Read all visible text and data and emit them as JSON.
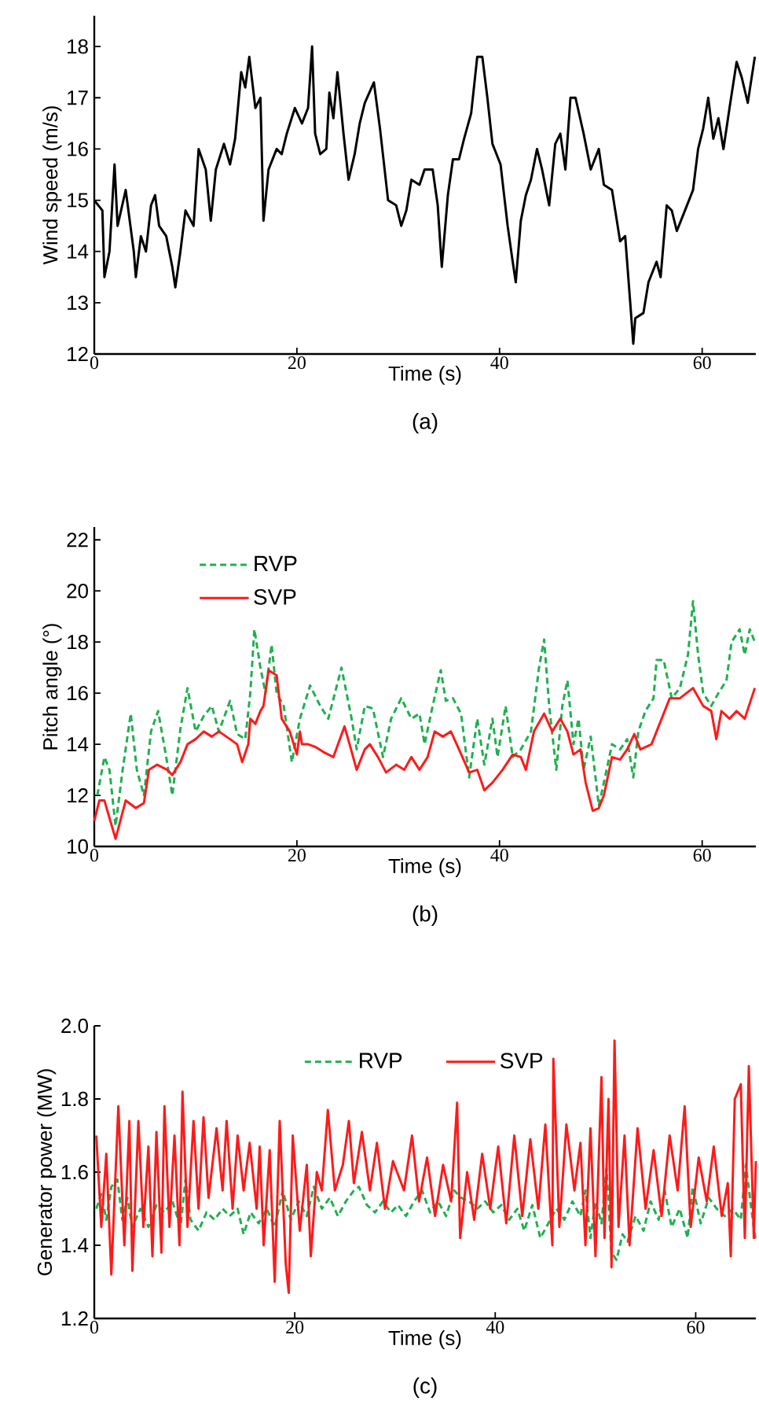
{
  "chart_data": [
    {
      "type": "line",
      "xlabel": "Time (s)",
      "ylabel": "Wind speed (m/s)",
      "annotations": [
        "(a)"
      ],
      "xlim": [
        0,
        65.3
      ],
      "ylim": [
        12,
        18.6
      ],
      "xticks": [
        0,
        20,
        40,
        60
      ],
      "yticks": [
        12,
        13,
        14,
        15,
        16,
        17,
        18
      ],
      "series": [
        {
          "color": "#000000",
          "line_style": "solid",
          "x": [
            0,
            0.8,
            1.0,
            1.5,
            2.0,
            2.3,
            3.1,
            3.9,
            4.1,
            4.6,
            5.1,
            5.6,
            6.0,
            6.4,
            7.1,
            7.7,
            8.0,
            8.5,
            9.0,
            9.8,
            10.3,
            11.0,
            11.5,
            12.0,
            12.8,
            13.4,
            13.9,
            14.5,
            14.9,
            15.3,
            15.9,
            16.4,
            16.7,
            17.2,
            18.0,
            18.5,
            19.0,
            19.8,
            20.5,
            21.1,
            21.5,
            21.8,
            22.3,
            22.9,
            23.2,
            23.6,
            24.0,
            24.6,
            25.1,
            25.7,
            26.2,
            26.7,
            27.6,
            28.2,
            29.0,
            29.8,
            30.3,
            30.8,
            31.3,
            32.1,
            32.6,
            33.4,
            33.9,
            34.3,
            34.9,
            35.4,
            36.0,
            36.5,
            37.2,
            37.8,
            38.3,
            38.8,
            39.3,
            40.1,
            40.8,
            41.3,
            41.6,
            42.1,
            42.6,
            43.1,
            43.7,
            44.2,
            44.9,
            45.5,
            46.0,
            46.5,
            47.0,
            47.5,
            48.3,
            49.0,
            49.8,
            50.3,
            51.1,
            51.9,
            52.4,
            52.9,
            53.2,
            53.4,
            54.2,
            54.7,
            55.5,
            55.9,
            56.2,
            56.5,
            57.0,
            57.5,
            58.3,
            59.1,
            59.6,
            60.1,
            60.6,
            61.1,
            61.6,
            62.1,
            62.7,
            63.4,
            63.9,
            64.5,
            65.2
          ],
          "values": [
            15.0,
            14.8,
            13.5,
            14.0,
            15.7,
            14.5,
            15.2,
            14.0,
            13.5,
            14.3,
            14.0,
            14.9,
            15.1,
            14.5,
            14.3,
            13.7,
            13.3,
            14.0,
            14.8,
            14.5,
            16.0,
            15.6,
            14.6,
            15.6,
            16.1,
            15.7,
            16.2,
            17.5,
            17.2,
            17.8,
            16.8,
            17.0,
            14.6,
            15.6,
            16.0,
            15.9,
            16.3,
            16.8,
            16.5,
            16.8,
            18.0,
            16.3,
            15.9,
            16.0,
            17.1,
            16.6,
            17.5,
            16.3,
            15.4,
            15.9,
            16.5,
            16.9,
            17.3,
            16.4,
            15.0,
            14.9,
            14.5,
            14.8,
            15.4,
            15.3,
            15.6,
            15.6,
            14.9,
            13.7,
            15.1,
            15.8,
            15.8,
            16.2,
            16.7,
            17.8,
            17.8,
            17.0,
            16.1,
            15.7,
            14.5,
            13.8,
            13.4,
            14.6,
            15.1,
            15.4,
            16.0,
            15.6,
            14.9,
            16.1,
            16.3,
            15.6,
            17.0,
            17.0,
            16.3,
            15.6,
            16.0,
            15.3,
            15.2,
            14.2,
            14.3,
            13.0,
            12.2,
            12.7,
            12.8,
            13.4,
            13.8,
            13.5,
            14.2,
            14.9,
            14.8,
            14.4,
            14.8,
            15.2,
            16.0,
            16.4,
            17.0,
            16.2,
            16.6,
            16.0,
            16.8,
            17.7,
            17.4,
            16.9,
            17.8
          ]
        }
      ]
    },
    {
      "type": "line",
      "xlabel": "Time (s)",
      "ylabel": "Pitch angle (°)",
      "annotations": [
        "(b)"
      ],
      "xlim": [
        0,
        65.3
      ],
      "ylim": [
        10,
        22.5
      ],
      "xticks": [
        0,
        20,
        40,
        60
      ],
      "yticks": [
        10,
        12,
        14,
        16,
        18,
        20,
        22
      ],
      "legend": "top left",
      "series": [
        {
          "name": "RVP",
          "color": "#1fb04f",
          "line_style": "dashed",
          "x": [
            0.3,
            1.0,
            1.5,
            2.1,
            2.8,
            3.6,
            4.2,
            4.9,
            5.6,
            6.3,
            7.1,
            7.7,
            8.5,
            9.2,
            10.0,
            10.8,
            11.6,
            12.3,
            13.4,
            14.1,
            14.9,
            15.4,
            15.8,
            16.4,
            16.9,
            17.5,
            18.0,
            18.7,
            19.5,
            20.3,
            21.3,
            22.3,
            23.1,
            24.4,
            25.4,
            25.9,
            26.7,
            27.5,
            28.5,
            29.3,
            30.3,
            31.3,
            32.1,
            32.6,
            33.4,
            34.2,
            34.7,
            35.4,
            36.2,
            37.0,
            37.8,
            38.5,
            39.3,
            39.8,
            40.6,
            41.3,
            42.1,
            43.1,
            43.9,
            44.4,
            44.9,
            45.6,
            46.2,
            46.7,
            47.3,
            47.8,
            48.3,
            49.0,
            49.8,
            50.3,
            51.1,
            51.9,
            52.6,
            53.2,
            53.7,
            54.4,
            55.2,
            55.5,
            56.2,
            57.0,
            57.8,
            58.6,
            59.1,
            59.6,
            60.1,
            60.9,
            61.6,
            62.4,
            62.9,
            63.7,
            64.2,
            64.7,
            65.2
          ],
          "values": [
            12.0,
            13.5,
            13.0,
            10.8,
            13.0,
            15.2,
            13.0,
            12.0,
            14.5,
            15.3,
            13.5,
            12.0,
            14.6,
            16.2,
            14.5,
            15.1,
            15.5,
            14.5,
            15.7,
            14.4,
            14.2,
            16.0,
            18.5,
            17.0,
            16.0,
            17.9,
            16.0,
            15.5,
            13.3,
            15.0,
            16.3,
            15.5,
            15.0,
            17.0,
            15.0,
            13.8,
            15.5,
            15.4,
            13.5,
            15.0,
            15.8,
            15.0,
            15.2,
            14.0,
            15.5,
            16.9,
            15.7,
            15.8,
            15.2,
            12.7,
            15.0,
            13.2,
            15.0,
            13.5,
            15.5,
            13.5,
            13.8,
            14.5,
            17.0,
            18.1,
            15.5,
            13.0,
            15.5,
            16.5,
            14.0,
            15.0,
            13.0,
            14.3,
            11.6,
            12.5,
            14.0,
            13.8,
            14.2,
            12.7,
            14.5,
            15.3,
            15.8,
            17.3,
            17.3,
            15.8,
            16.2,
            17.5,
            19.6,
            17.5,
            16.0,
            15.5,
            16.0,
            16.5,
            18.0,
            18.5,
            17.5,
            18.5,
            18.0
          ]
        },
        {
          "name": "SVP",
          "color": "#ff1a1a",
          "line_style": "solid",
          "x": [
            0,
            0.5,
            1.0,
            2.1,
            3.1,
            4.1,
            4.9,
            5.4,
            6.2,
            7.2,
            7.7,
            8.5,
            9.2,
            10.0,
            10.8,
            11.6,
            12.3,
            13.4,
            14.1,
            14.6,
            15.2,
            15.4,
            15.9,
            16.4,
            16.7,
            17.2,
            18.0,
            18.5,
            19.3,
            20.0,
            20.3,
            20.5,
            21.1,
            21.8,
            22.6,
            23.6,
            24.7,
            25.2,
            25.9,
            26.7,
            27.2,
            28.0,
            28.8,
            29.8,
            30.6,
            31.3,
            32.1,
            32.9,
            33.6,
            34.4,
            35.2,
            36.0,
            37.0,
            37.8,
            38.5,
            39.3,
            40.3,
            41.3,
            42.1,
            42.6,
            43.4,
            44.4,
            45.2,
            46.0,
            46.7,
            47.3,
            48.0,
            48.5,
            49.2,
            49.8,
            50.3,
            51.1,
            51.9,
            52.6,
            53.3,
            53.9,
            55.0,
            56.0,
            56.8,
            57.8,
            59.1,
            60.1,
            60.9,
            61.4,
            61.9,
            62.7,
            63.4,
            64.2,
            65.2
          ],
          "values": [
            11.0,
            11.8,
            11.8,
            10.3,
            11.8,
            11.5,
            11.7,
            13.0,
            13.2,
            13.0,
            12.8,
            13.3,
            14.0,
            14.2,
            14.5,
            14.3,
            14.5,
            14.2,
            14.0,
            13.3,
            14.0,
            15.0,
            14.8,
            15.3,
            15.5,
            16.9,
            16.7,
            15.0,
            14.5,
            13.6,
            14.5,
            14.0,
            14.0,
            13.9,
            13.7,
            13.5,
            14.7,
            14.0,
            13.0,
            13.8,
            14.0,
            13.5,
            12.9,
            13.2,
            13.0,
            13.5,
            13.0,
            13.5,
            14.5,
            14.3,
            14.5,
            13.8,
            12.9,
            13.0,
            12.2,
            12.5,
            13.0,
            13.6,
            13.5,
            13.0,
            14.5,
            15.2,
            14.5,
            15.0,
            14.5,
            13.6,
            13.8,
            12.5,
            11.4,
            11.5,
            12.0,
            13.5,
            13.4,
            13.8,
            14.4,
            13.8,
            14.0,
            15.0,
            15.8,
            15.8,
            16.2,
            15.5,
            15.3,
            14.2,
            15.3,
            15.0,
            15.3,
            15.0,
            16.2
          ]
        }
      ]
    },
    {
      "type": "line",
      "xlabel": "Time (s)",
      "ylabel": "Generator power (MW)",
      "annotations": [
        "(c)"
      ],
      "xlim": [
        0,
        66
      ],
      "ylim": [
        1.2,
        2.0
      ],
      "xticks": [
        0,
        20,
        40,
        60
      ],
      "yticks": [
        1.2,
        1.4,
        1.6,
        1.8,
        {
          "value": 2,
          "label": "2.0"
        }
      ],
      "legend": "top",
      "series": [
        {
          "name": "RVP",
          "color": "#1fb04f",
          "line_style": "dashed",
          "x": [
            0.2,
            0.7,
            1.2,
            1.7,
            2.3,
            2.8,
            3.3,
            3.8,
            4.6,
            5.4,
            6.2,
            7.0,
            7.8,
            8.6,
            9.1,
            9.6,
            10.4,
            11.2,
            12.0,
            12.8,
            13.5,
            14.3,
            14.9,
            15.6,
            16.4,
            17.2,
            18.0,
            18.8,
            19.6,
            20.4,
            21.2,
            21.9,
            22.7,
            23.5,
            24.3,
            25.1,
            25.9,
            26.4,
            27.2,
            28.0,
            28.8,
            29.6,
            30.3,
            31.1,
            31.9,
            32.7,
            33.5,
            34.3,
            35.1,
            35.9,
            36.6,
            37.4,
            38.2,
            39.0,
            39.8,
            40.6,
            41.4,
            42.2,
            42.9,
            43.7,
            44.5,
            45.3,
            46.1,
            46.9,
            47.7,
            48.5,
            49.0,
            49.5,
            50.0,
            50.6,
            51.1,
            51.6,
            52.1,
            52.7,
            53.2,
            54.0,
            54.8,
            55.5,
            56.3,
            56.9,
            57.6,
            58.4,
            59.2,
            59.7,
            60.5,
            61.3,
            62.1,
            62.9,
            63.7,
            64.5,
            65.0,
            65.5,
            66.0
          ],
          "values": [
            1.5,
            1.54,
            1.47,
            1.56,
            1.58,
            1.47,
            1.53,
            1.45,
            1.5,
            1.45,
            1.51,
            1.49,
            1.52,
            1.45,
            1.58,
            1.47,
            1.44,
            1.49,
            1.47,
            1.5,
            1.48,
            1.5,
            1.43,
            1.49,
            1.46,
            1.5,
            1.45,
            1.55,
            1.47,
            1.52,
            1.48,
            1.56,
            1.5,
            1.53,
            1.48,
            1.52,
            1.55,
            1.56,
            1.51,
            1.49,
            1.52,
            1.49,
            1.51,
            1.48,
            1.52,
            1.55,
            1.49,
            1.52,
            1.48,
            1.55,
            1.53,
            1.52,
            1.5,
            1.52,
            1.49,
            1.51,
            1.47,
            1.5,
            1.44,
            1.51,
            1.42,
            1.46,
            1.5,
            1.47,
            1.52,
            1.48,
            1.55,
            1.42,
            1.52,
            1.46,
            1.61,
            1.38,
            1.36,
            1.43,
            1.41,
            1.48,
            1.44,
            1.52,
            1.47,
            1.55,
            1.45,
            1.5,
            1.42,
            1.56,
            1.46,
            1.53,
            1.5,
            1.48,
            1.5,
            1.47,
            1.62,
            1.51,
            1.41
          ]
        },
        {
          "name": "SVP",
          "color": "#ff1a1a",
          "line_style": "solid",
          "x": [
            0.2,
            0.7,
            1.2,
            1.7,
            2.4,
            3.0,
            3.5,
            3.8,
            4.4,
            4.9,
            5.4,
            5.8,
            6.2,
            6.7,
            7.0,
            7.5,
            8.0,
            8.5,
            8.8,
            9.3,
            9.9,
            10.4,
            10.9,
            11.4,
            12.2,
            12.8,
            13.2,
            13.8,
            14.3,
            14.9,
            15.5,
            16.2,
            16.5,
            16.9,
            17.5,
            18.0,
            18.5,
            19.1,
            19.4,
            19.8,
            20.5,
            21.2,
            21.6,
            22.2,
            22.7,
            23.3,
            24.0,
            24.8,
            25.4,
            25.9,
            26.7,
            27.5,
            28.2,
            29.0,
            29.8,
            30.9,
            31.7,
            32.4,
            33.2,
            34.0,
            34.8,
            35.6,
            36.2,
            36.5,
            37.2,
            37.9,
            38.7,
            39.5,
            40.3,
            41.1,
            41.9,
            42.7,
            43.5,
            44.3,
            45.0,
            45.7,
            45.8,
            46.4,
            47.1,
            47.9,
            48.5,
            49.0,
            49.5,
            50.0,
            50.6,
            50.9,
            51.3,
            51.6,
            51.9,
            52.3,
            52.9,
            53.4,
            54.2,
            55.0,
            55.8,
            56.6,
            57.4,
            58.2,
            58.9,
            59.5,
            60.3,
            61.1,
            61.8,
            62.6,
            63.2,
            63.5,
            63.9,
            64.5,
            64.9,
            65.3,
            65.8,
            66.0
          ],
          "values": [
            1.7,
            1.45,
            1.65,
            1.32,
            1.78,
            1.4,
            1.74,
            1.33,
            1.74,
            1.45,
            1.67,
            1.37,
            1.71,
            1.38,
            1.78,
            1.45,
            1.7,
            1.4,
            1.82,
            1.45,
            1.74,
            1.5,
            1.75,
            1.53,
            1.72,
            1.55,
            1.74,
            1.5,
            1.7,
            1.55,
            1.68,
            1.5,
            1.67,
            1.4,
            1.66,
            1.3,
            1.74,
            1.35,
            1.27,
            1.7,
            1.44,
            1.62,
            1.37,
            1.6,
            1.55,
            1.77,
            1.55,
            1.62,
            1.74,
            1.57,
            1.71,
            1.55,
            1.68,
            1.5,
            1.63,
            1.55,
            1.7,
            1.52,
            1.64,
            1.48,
            1.62,
            1.52,
            1.79,
            1.42,
            1.6,
            1.47,
            1.65,
            1.5,
            1.67,
            1.46,
            1.7,
            1.48,
            1.69,
            1.5,
            1.73,
            1.4,
            1.91,
            1.45,
            1.73,
            1.55,
            1.68,
            1.4,
            1.72,
            1.37,
            1.86,
            1.42,
            1.8,
            1.34,
            1.96,
            1.45,
            1.7,
            1.4,
            1.72,
            1.5,
            1.66,
            1.48,
            1.7,
            1.55,
            1.78,
            1.45,
            1.64,
            1.52,
            1.67,
            1.48,
            1.57,
            1.37,
            1.8,
            1.84,
            1.42,
            1.89,
            1.42,
            1.63
          ]
        }
      ]
    }
  ]
}
